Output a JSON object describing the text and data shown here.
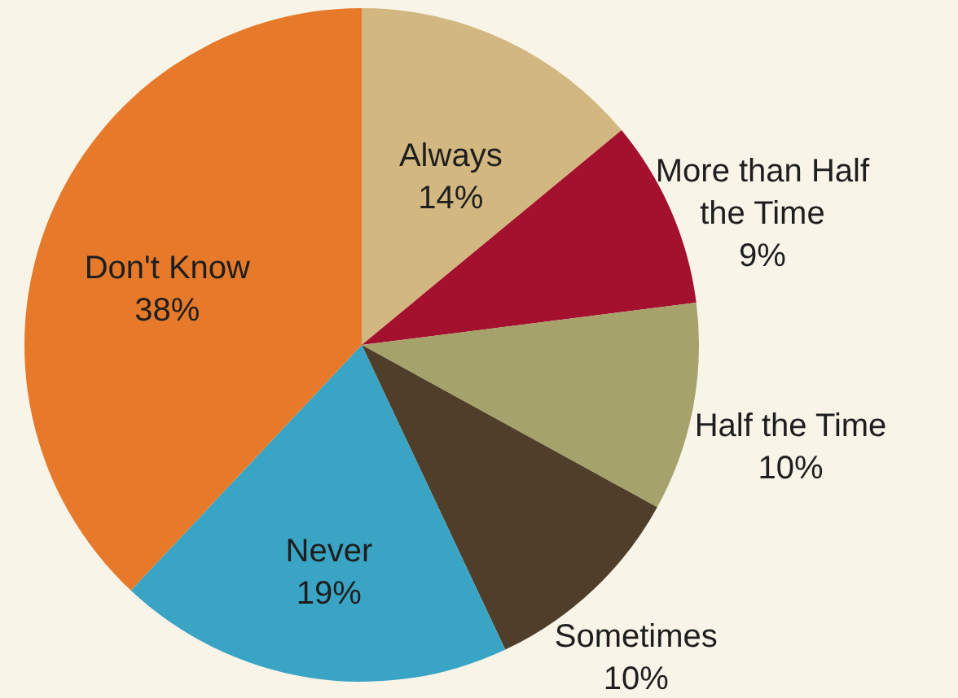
{
  "chart_data": {
    "type": "pie",
    "categories": [
      "Always",
      "More than Half the Time",
      "Half the Time",
      "Sometimes",
      "Never",
      "Don't Know"
    ],
    "values": [
      14,
      9,
      10,
      10,
      19,
      38
    ],
    "value_labels": [
      "14%",
      "9%",
      "10%",
      "10%",
      "19%",
      "38%"
    ],
    "colors": [
      "#d2b880",
      "#a3112e",
      "#a6a26c",
      "#4f3f2a",
      "#3aa4c4",
      "#e67a2a"
    ]
  }
}
